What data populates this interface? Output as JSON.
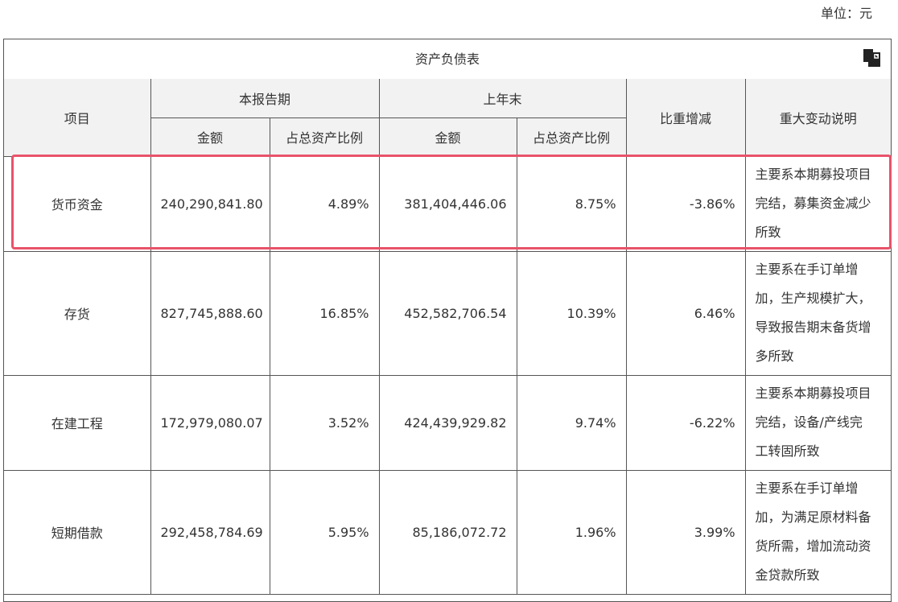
{
  "unit_label": "单位：元",
  "table": {
    "title": "资产负债表",
    "copy_icon": "copy-icon",
    "headers": {
      "item": "项目",
      "current_period": "本报告期",
      "prior_year_end": "上年末",
      "amount": "金额",
      "ratio": "占总资产比例",
      "change": "比重增减",
      "note": "重大变动说明"
    },
    "rows": [
      {
        "item": "货币资金",
        "current_amount": "240,290,841.80",
        "current_ratio": "4.89%",
        "prior_amount": "381,404,446.06",
        "prior_ratio": "8.75%",
        "change": "-3.86%",
        "note": [
          "主要系本期募投项目",
          "完结，募集资金减少",
          "所致"
        ]
      },
      {
        "item": "存货",
        "current_amount": "827,745,888.60",
        "current_ratio": "16.85%",
        "prior_amount": "452,582,706.54",
        "prior_ratio": "10.39%",
        "change": "6.46%",
        "note": [
          "主要系在手订单增",
          "加，生产规模扩大，",
          "导致报告期末备货增",
          "多所致"
        ]
      },
      {
        "item": "在建工程",
        "current_amount": "172,979,080.07",
        "current_ratio": "3.52%",
        "prior_amount": "424,439,929.82",
        "prior_ratio": "9.74%",
        "change": "-6.22%",
        "note": [
          "主要系本期募投项目",
          "完结，设备/产线完",
          "工转固所致"
        ]
      },
      {
        "item": "短期借款",
        "current_amount": "292,458,784.69",
        "current_ratio": "5.95%",
        "prior_amount": "85,186,072.72",
        "prior_ratio": "1.96%",
        "change": "3.99%",
        "note": [
          "主要系在手订单增",
          "加，为满足原材料备",
          "货所需，增加流动资",
          "金贷款所致"
        ]
      }
    ]
  },
  "highlight_color": "#e8536a"
}
